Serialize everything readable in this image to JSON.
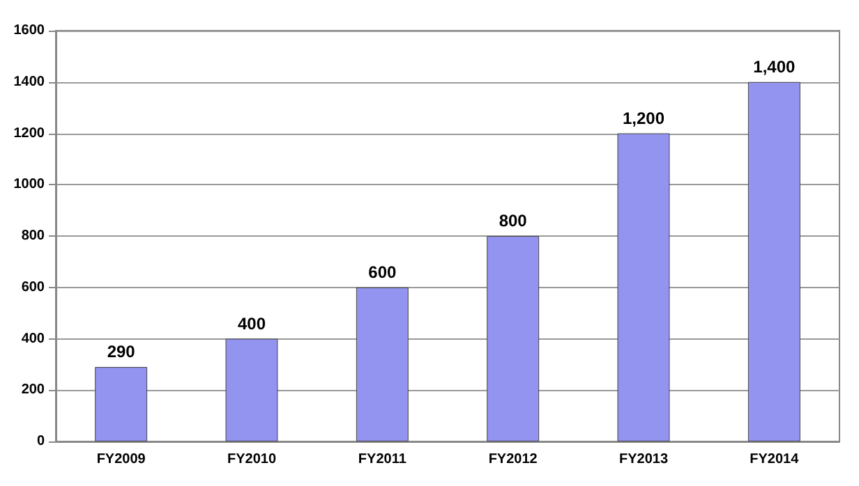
{
  "chart_data": {
    "type": "bar",
    "categories": [
      "FY2009",
      "FY2010",
      "FY2011",
      "FY2012",
      "FY2013",
      "FY2014"
    ],
    "values": [
      290,
      400,
      600,
      800,
      1200,
      1400
    ],
    "value_labels": [
      "290",
      "400",
      "600",
      "800",
      "1,200",
      "1,400"
    ],
    "color": "#9393f0",
    "ylim": [
      0,
      1600
    ],
    "yticks": [
      0,
      200,
      400,
      600,
      800,
      1000,
      1200,
      1400,
      1600
    ],
    "grid": "y"
  }
}
